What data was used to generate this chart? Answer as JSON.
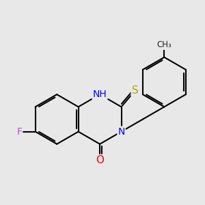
{
  "background_color": "#e8e8e8",
  "bond_color": "#000000",
  "bond_width": 1.5,
  "atoms": {
    "F": {
      "color": "#cc44cc",
      "fontsize": 10
    },
    "O": {
      "color": "#ff0000",
      "fontsize": 11
    },
    "N": {
      "color": "#0000ff",
      "fontsize": 10
    },
    "S": {
      "color": "#aaaa00",
      "fontsize": 11
    },
    "NH": {
      "color": "#0000ff",
      "fontsize": 10
    }
  },
  "figsize": [
    3.0,
    3.0
  ],
  "dpi": 100
}
